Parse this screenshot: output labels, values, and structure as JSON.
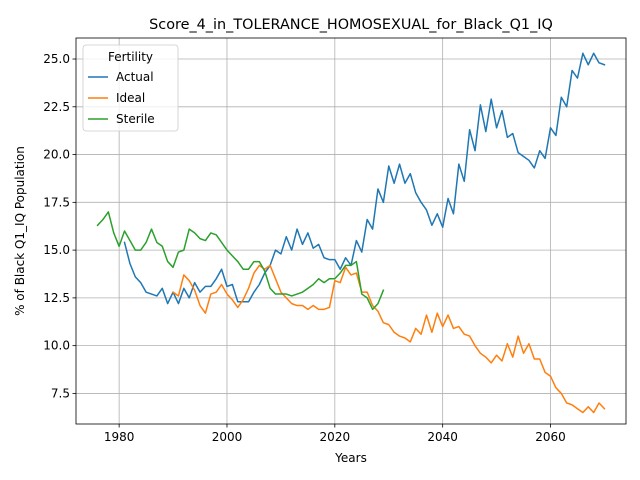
{
  "chart_data": {
    "type": "line",
    "title": "Score_4_in_TOLERANCE_HOMOSEXUAL_for_Black_Q1_IQ",
    "xlabel": "Years",
    "ylabel": "% of Black Q1_IQ Population",
    "xlim": [
      1972,
      2074
    ],
    "ylim": [
      5.9,
      26.1
    ],
    "xticks": [
      1980,
      2000,
      2020,
      2040,
      2060
    ],
    "yticks": [
      7.5,
      10.0,
      12.5,
      15.0,
      17.5,
      20.0,
      22.5,
      25.0
    ],
    "grid": true,
    "legend": {
      "title": "Fertility",
      "position": "top-left"
    },
    "series": [
      {
        "name": "Actual",
        "color": "#1f77b4",
        "x": [
          1981,
          1982,
          1983,
          1984,
          1985,
          1986,
          1987,
          1988,
          1989,
          1990,
          1991,
          1992,
          1993,
          1994,
          1995,
          1996,
          1997,
          1998,
          1999,
          2000,
          2001,
          2002,
          2003,
          2004,
          2005,
          2006,
          2007,
          2008,
          2009,
          2010,
          2011,
          2012,
          2013,
          2014,
          2015,
          2016,
          2017,
          2018,
          2019,
          2020,
          2021,
          2022,
          2023,
          2024,
          2025,
          2026,
          2027,
          2028,
          2029,
          2030,
          2031,
          2032,
          2033,
          2034,
          2035,
          2036,
          2037,
          2038,
          2039,
          2040,
          2041,
          2042,
          2043,
          2044,
          2045,
          2046,
          2047,
          2048,
          2049,
          2050,
          2051,
          2052,
          2053,
          2054,
          2055,
          2056,
          2057,
          2058,
          2059,
          2060,
          2061,
          2062,
          2063,
          2064,
          2065,
          2066,
          2067,
          2068,
          2069,
          2070
        ],
        "y": [
          15.4,
          14.3,
          13.6,
          13.3,
          12.8,
          12.7,
          12.6,
          13.0,
          12.2,
          12.8,
          12.2,
          13.0,
          12.5,
          13.3,
          12.8,
          13.1,
          13.1,
          13.5,
          14.0,
          13.1,
          13.2,
          12.3,
          12.3,
          12.3,
          12.8,
          13.2,
          13.8,
          14.2,
          15.0,
          14.8,
          15.7,
          15.0,
          16.1,
          15.3,
          15.9,
          15.1,
          15.3,
          14.6,
          14.5,
          14.5,
          14.0,
          14.6,
          14.2,
          15.5,
          14.9,
          16.6,
          16.1,
          18.2,
          17.5,
          19.4,
          18.5,
          19.5,
          18.5,
          19.0,
          18.0,
          17.5,
          17.1,
          16.3,
          16.9,
          16.2,
          17.7,
          16.9,
          19.5,
          18.6,
          21.3,
          20.2,
          22.6,
          21.2,
          22.9,
          21.4,
          22.3,
          20.9,
          21.1,
          20.1,
          19.9,
          19.7,
          19.3,
          20.2,
          19.8,
          21.4,
          21.0,
          23.0,
          22.5,
          24.4,
          24.0,
          25.3,
          24.7,
          25.3,
          24.8,
          24.7
        ]
      },
      {
        "name": "Ideal",
        "color": "#ff7f0e",
        "x": [
          1990,
          1991,
          1992,
          1993,
          1994,
          1995,
          1996,
          1997,
          1998,
          1999,
          2000,
          2001,
          2002,
          2003,
          2004,
          2005,
          2006,
          2007,
          2008,
          2009,
          2010,
          2011,
          2012,
          2013,
          2014,
          2015,
          2016,
          2017,
          2018,
          2019,
          2020,
          2021,
          2022,
          2023,
          2024,
          2025,
          2026,
          2027,
          2028,
          2029,
          2030,
          2031,
          2032,
          2033,
          2034,
          2035,
          2036,
          2037,
          2038,
          2039,
          2040,
          2041,
          2042,
          2043,
          2044,
          2045,
          2046,
          2047,
          2048,
          2049,
          2050,
          2051,
          2052,
          2053,
          2054,
          2055,
          2056,
          2057,
          2058,
          2059,
          2060,
          2061,
          2062,
          2063,
          2064,
          2065,
          2066,
          2067,
          2068,
          2069,
          2070
        ],
        "y": [
          12.8,
          12.6,
          13.7,
          13.4,
          12.9,
          12.1,
          11.7,
          12.7,
          12.8,
          13.2,
          12.7,
          12.4,
          12.0,
          12.4,
          13.0,
          13.8,
          14.2,
          14.0,
          14.2,
          13.5,
          12.8,
          12.5,
          12.2,
          12.1,
          12.1,
          11.9,
          12.1,
          11.9,
          11.9,
          12.0,
          13.4,
          13.3,
          14.1,
          13.7,
          13.8,
          12.8,
          12.8,
          12.1,
          11.8,
          11.2,
          11.1,
          10.7,
          10.5,
          10.4,
          10.2,
          10.9,
          10.6,
          11.6,
          10.7,
          11.7,
          11.0,
          11.6,
          10.9,
          11.0,
          10.6,
          10.5,
          10.0,
          9.6,
          9.4,
          9.1,
          9.5,
          9.2,
          10.1,
          9.4,
          10.5,
          9.6,
          10.1,
          9.3,
          9.3,
          8.6,
          8.4,
          7.8,
          7.5,
          7.0,
          6.9,
          6.7,
          6.5,
          6.8,
          6.5,
          7.0,
          6.7
        ]
      },
      {
        "name": "Sterile",
        "color": "#2ca02c",
        "x": [
          1976,
          1977,
          1978,
          1979,
          1980,
          1981,
          1982,
          1983,
          1984,
          1985,
          1986,
          1987,
          1988,
          1989,
          1990,
          1991,
          1992,
          1993,
          1994,
          1995,
          1996,
          1997,
          1998,
          1999,
          2000,
          2001,
          2002,
          2003,
          2004,
          2005,
          2006,
          2007,
          2008,
          2009,
          2010,
          2011,
          2012,
          2013,
          2014,
          2015,
          2016,
          2017,
          2018,
          2019,
          2020,
          2021,
          2022,
          2023,
          2024,
          2025,
          2026,
          2027,
          2028,
          2029
        ],
        "y": [
          16.3,
          16.6,
          17.0,
          15.9,
          15.2,
          16.0,
          15.5,
          15.0,
          15.0,
          15.4,
          16.1,
          15.4,
          15.2,
          14.4,
          14.1,
          14.9,
          15.0,
          16.1,
          15.9,
          15.6,
          15.5,
          15.9,
          15.8,
          15.4,
          15.0,
          14.7,
          14.4,
          14.0,
          14.0,
          14.4,
          14.4,
          13.9,
          13.0,
          12.7,
          12.7,
          12.7,
          12.6,
          12.7,
          12.8,
          13.0,
          13.2,
          13.5,
          13.3,
          13.5,
          13.5,
          13.8,
          14.2,
          14.2,
          14.4,
          12.7,
          12.5,
          11.9,
          12.2,
          12.9
        ]
      }
    ]
  }
}
